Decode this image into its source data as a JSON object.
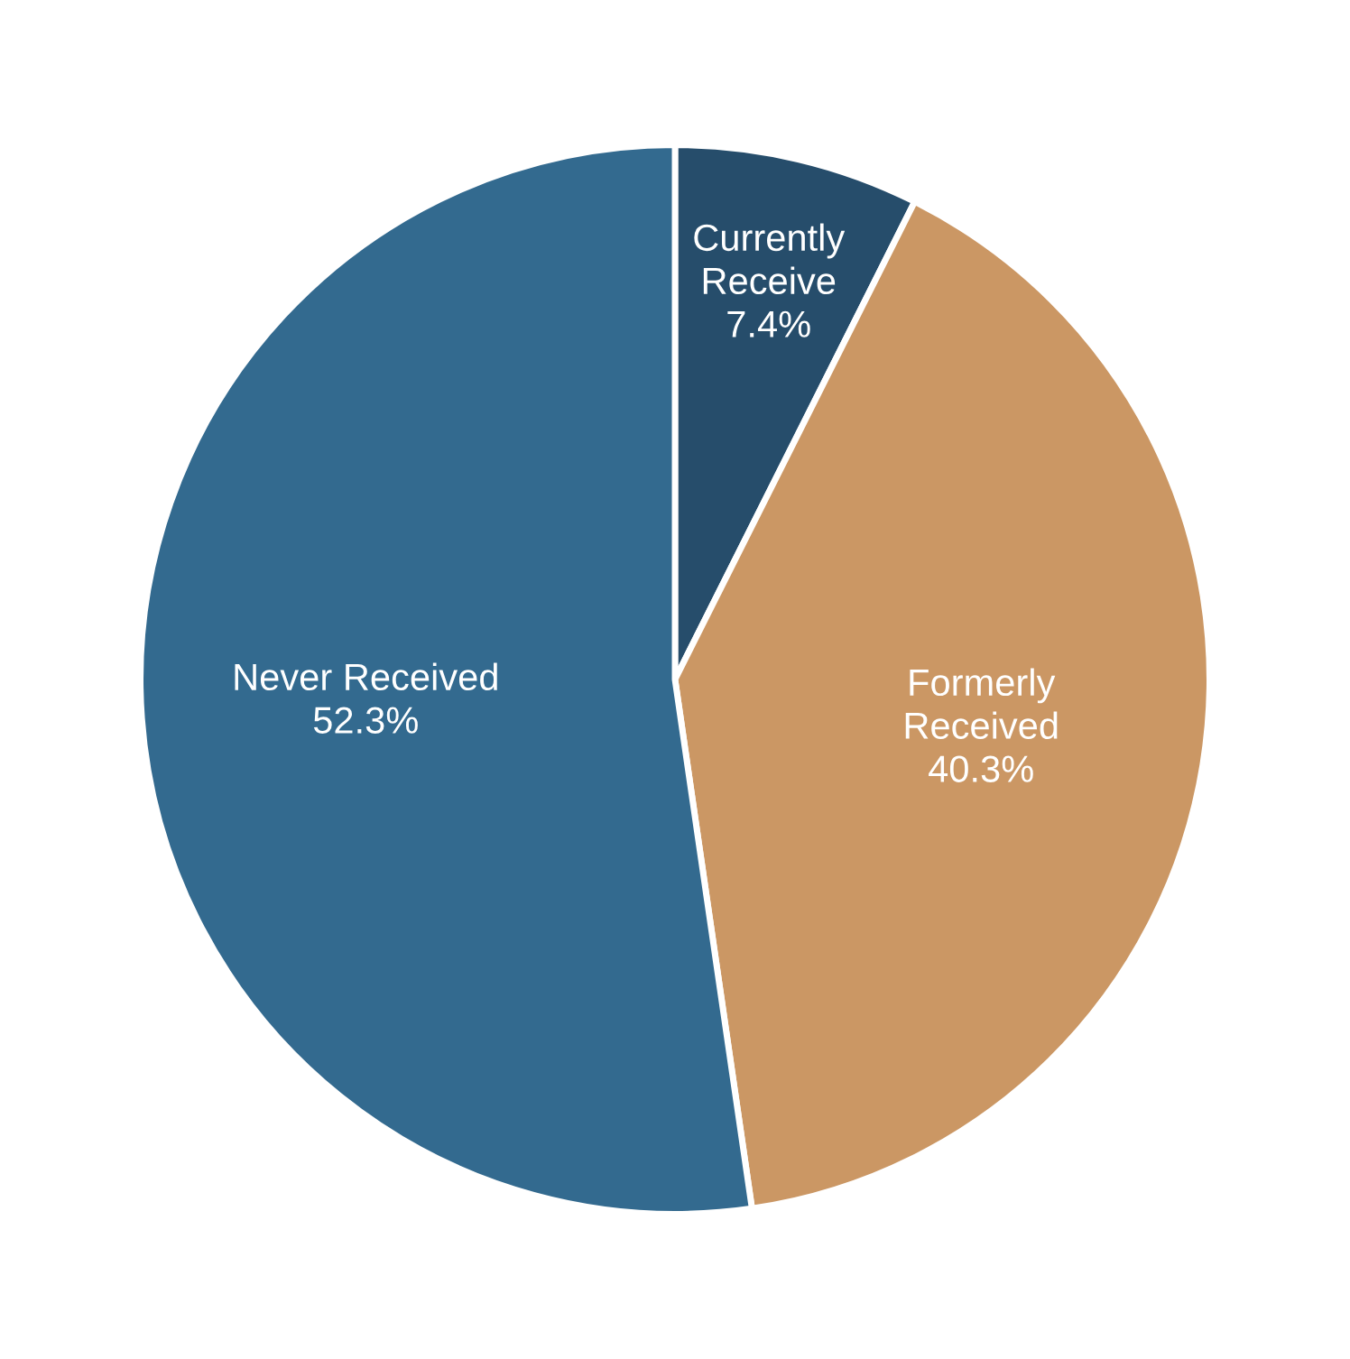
{
  "chart_data": {
    "type": "pie",
    "categories": [
      "Currently\nReceive",
      "Formerly\nReceived",
      "Never Received"
    ],
    "values": [
      7.4,
      40.3,
      52.3
    ],
    "value_labels": [
      "7.4%",
      "40.3%",
      "52.3%"
    ],
    "colors": [
      "#264d6b",
      "#cb9764",
      "#336a8f"
    ]
  }
}
